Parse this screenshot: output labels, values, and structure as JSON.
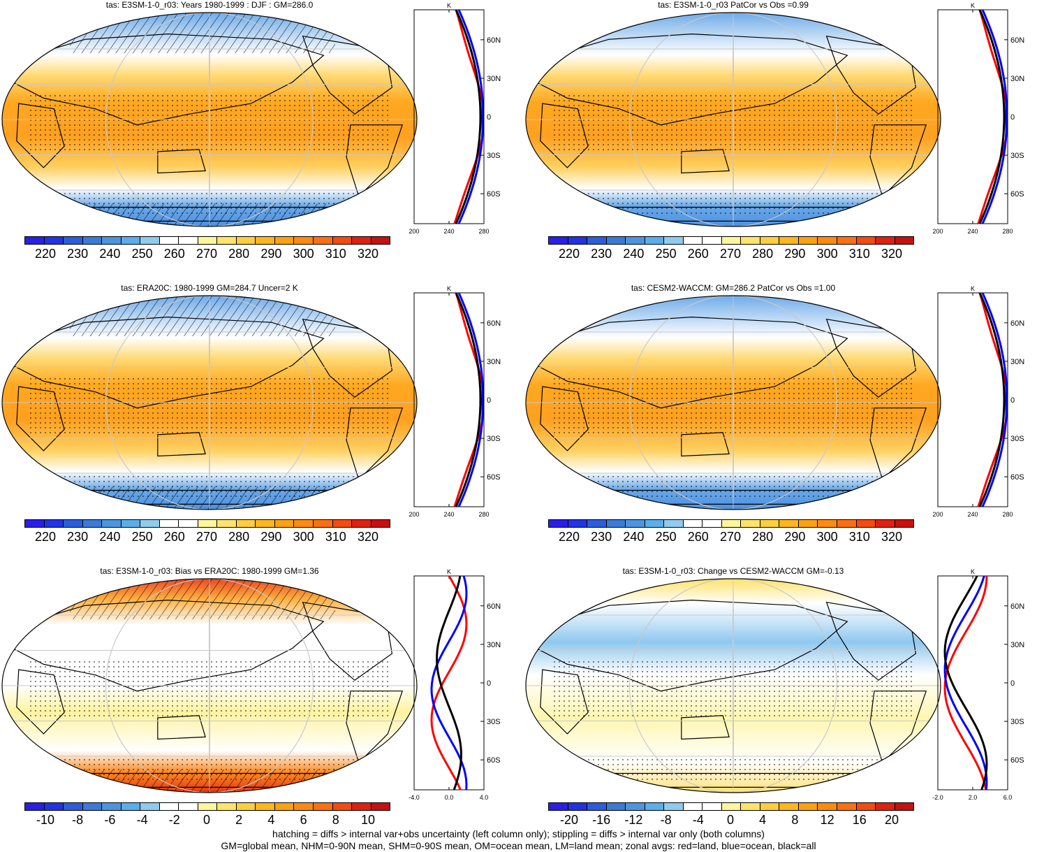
{
  "panels": [
    {
      "title": "tas: E3SM-1-0_r03: Years 1980-1999 : DJF : GM=286.0",
      "cbar_labels": [
        "220",
        "230",
        "240",
        "250",
        "260",
        "270",
        "280",
        "290",
        "300",
        "310",
        "320"
      ],
      "palette": "abs",
      "hatch": true,
      "profile": {
        "unit": "K",
        "xticks": [
          "200",
          "240",
          "280"
        ],
        "xrange": [
          200,
          300
        ],
        "mode": "abs"
      }
    },
    {
      "title": "tas: E3SM-1-0_r03 PatCor vs Obs =0.99",
      "cbar_labels": [
        "220",
        "230",
        "240",
        "250",
        "260",
        "270",
        "280",
        "290",
        "300",
        "310",
        "320"
      ],
      "palette": "abs",
      "hatch": false,
      "profile": {
        "unit": "K",
        "xticks": [
          "200",
          "240",
          "280"
        ],
        "xrange": [
          200,
          300
        ],
        "mode": "abs"
      }
    },
    {
      "title": "tas: ERA20C: 1980-1999 GM=284.7 Uncer=2 K",
      "cbar_labels": [
        "220",
        "230",
        "240",
        "250",
        "260",
        "270",
        "280",
        "290",
        "300",
        "310",
        "320"
      ],
      "palette": "abs",
      "hatch": true,
      "profile": {
        "unit": "K",
        "xticks": [
          "200",
          "240",
          "280"
        ],
        "xrange": [
          200,
          300
        ],
        "mode": "abs"
      }
    },
    {
      "title": "tas: CESM2-WACCM: GM=286.2 PatCor vs Obs =1.00",
      "cbar_labels": [
        "220",
        "230",
        "240",
        "250",
        "260",
        "270",
        "280",
        "290",
        "300",
        "310",
        "320"
      ],
      "palette": "abs",
      "hatch": false,
      "profile": {
        "unit": "K",
        "xticks": [
          "200",
          "240",
          "280"
        ],
        "xrange": [
          200,
          300
        ],
        "mode": "abs"
      }
    },
    {
      "title": "tas: E3SM-1-0_r03: Bias vs ERA20C: 1980-1999 GM=1.36",
      "cbar_labels": [
        "-10",
        "-8",
        "-6",
        "-4",
        "-2",
        "0",
        "2",
        "4",
        "6",
        "8",
        "10"
      ],
      "palette": "bias",
      "hatch": true,
      "profile": {
        "unit": "K",
        "xticks": [
          "-4.0",
          "0.0",
          "4.0"
        ],
        "xrange": [
          -4,
          4
        ],
        "mode": "bias"
      }
    },
    {
      "title": "tas: E3SM-1-0_r03: Change vs CESM2-WACCM GM=-0.13",
      "cbar_labels": [
        "-20",
        "-16",
        "-12",
        "-8",
        "-4",
        "0",
        "4",
        "8",
        "12",
        "16",
        "20"
      ],
      "palette": "change",
      "hatch": false,
      "profile": {
        "unit": "K",
        "xticks": [
          "-2.0",
          "2.0",
          "6.0"
        ],
        "xrange": [
          -4,
          8
        ],
        "mode": "change"
      }
    }
  ],
  "lat_labels": [
    "60N",
    "30N",
    "0",
    "30S",
    "60S"
  ],
  "legend_lines": [
    "red=land",
    "blue=ocean",
    "black=all"
  ],
  "colors": {
    "abs_palette": [
      "#2a1fe8",
      "#2233e6",
      "#2b5ddd",
      "#3a7ad9",
      "#4b95e0",
      "#5aaeea",
      "#8fcbef",
      "#ffffff",
      "#ffffff",
      "#fff59a",
      "#ffe36a",
      "#ffce3c",
      "#ffb51e",
      "#ffa010",
      "#ff8a10",
      "#ff6f10",
      "#f54a10",
      "#e02010",
      "#c81010"
    ],
    "diff_palette": [
      "#2a1fe8",
      "#2233e6",
      "#2b5ddd",
      "#3a7ad9",
      "#4b95e0",
      "#5aaeea",
      "#8fcbef",
      "#ffffff",
      "#ffffff",
      "#fff59a",
      "#ffe36a",
      "#ffce3c",
      "#ffb51e",
      "#ffa010",
      "#ff8a10",
      "#ff6f10",
      "#f54a10",
      "#e02010",
      "#c81010"
    ],
    "land": "#ff0000",
    "ocean": "#0000ff",
    "all": "#000000"
  },
  "footer": {
    "line1": "hatching = diffs > internal var+obs uncertainty (left column only); stippling = diffs > internal var only (both columns)",
    "line2": "GM=global mean, NHM=0-90N mean, SHM=0-90S mean, OM=ocean mean, LM=land mean; zonal avgs: red=land, blue=ocean, black=all"
  }
}
